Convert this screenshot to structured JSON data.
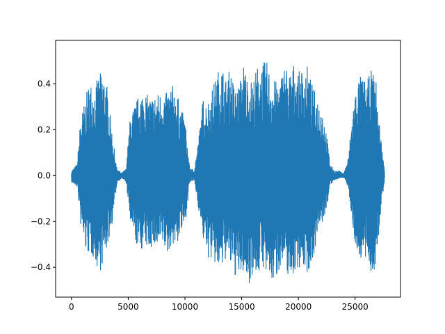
{
  "chart_data": {
    "type": "line",
    "title": "",
    "xlabel": "",
    "ylabel": "",
    "xlim": [
      -1400,
      29000
    ],
    "ylim": [
      -0.53,
      0.59
    ],
    "xticks": [
      0,
      5000,
      10000,
      15000,
      20000,
      25000
    ],
    "xtick_labels": [
      "0",
      "5000",
      "10000",
      "15000",
      "20000",
      "25000"
    ],
    "yticks": [
      -0.4,
      -0.2,
      0.0,
      0.2,
      0.4
    ],
    "ytick_labels": [
      "−0.4",
      "−0.2",
      "0.0",
      "0.2",
      "0.4"
    ],
    "grid": false,
    "legend": "none",
    "series": [
      {
        "color": "#1f77b4",
        "x": [
          0,
          500,
          800,
          1200,
          1600,
          2000,
          2400,
          2800,
          3200,
          3600,
          4000,
          4400,
          4800,
          5200,
          5600,
          6000,
          6400,
          6800,
          7200,
          7600,
          8000,
          8400,
          8800,
          9200,
          9600,
          10000,
          10400,
          10800,
          11200,
          11600,
          12000,
          12400,
          12800,
          13200,
          13600,
          14000,
          14400,
          14800,
          15200,
          15600,
          16000,
          16400,
          16800,
          17200,
          17600,
          18000,
          18400,
          18800,
          19200,
          19600,
          20000,
          20400,
          20800,
          21200,
          21600,
          22000,
          22400,
          22800,
          23200,
          23600,
          24000,
          24400,
          24800,
          25200,
          25600,
          26000,
          26400,
          26800,
          27200,
          27600
        ],
        "upper": [
          0.02,
          0.05,
          0.25,
          0.33,
          0.42,
          0.38,
          0.44,
          0.46,
          0.38,
          0.18,
          0.03,
          0.01,
          0.03,
          0.27,
          0.31,
          0.36,
          0.38,
          0.34,
          0.35,
          0.36,
          0.37,
          0.36,
          0.4,
          0.38,
          0.3,
          0.25,
          0.04,
          0.02,
          0.16,
          0.34,
          0.32,
          0.38,
          0.44,
          0.5,
          0.42,
          0.47,
          0.38,
          0.4,
          0.5,
          0.41,
          0.42,
          0.48,
          0.49,
          0.5,
          0.44,
          0.41,
          0.42,
          0.5,
          0.45,
          0.49,
          0.45,
          0.47,
          0.48,
          0.4,
          0.35,
          0.32,
          0.22,
          0.05,
          0.02,
          0.02,
          0.01,
          0.08,
          0.3,
          0.42,
          0.44,
          0.4,
          0.46,
          0.44,
          0.2,
          0.02
        ],
        "lower": [
          -0.03,
          -0.05,
          -0.22,
          -0.33,
          -0.35,
          -0.36,
          -0.43,
          -0.38,
          -0.3,
          -0.2,
          -0.03,
          -0.01,
          -0.03,
          -0.22,
          -0.29,
          -0.33,
          -0.31,
          -0.32,
          -0.31,
          -0.33,
          -0.3,
          -0.35,
          -0.3,
          -0.31,
          -0.26,
          -0.22,
          -0.03,
          -0.02,
          -0.15,
          -0.28,
          -0.36,
          -0.37,
          -0.41,
          -0.42,
          -0.36,
          -0.4,
          -0.44,
          -0.45,
          -0.42,
          -0.48,
          -0.42,
          -0.44,
          -0.39,
          -0.45,
          -0.47,
          -0.46,
          -0.39,
          -0.41,
          -0.45,
          -0.43,
          -0.4,
          -0.4,
          -0.43,
          -0.38,
          -0.28,
          -0.22,
          -0.17,
          -0.04,
          -0.02,
          -0.01,
          -0.01,
          -0.05,
          -0.25,
          -0.35,
          -0.37,
          -0.38,
          -0.42,
          -0.44,
          -0.18,
          -0.01
        ]
      }
    ]
  }
}
